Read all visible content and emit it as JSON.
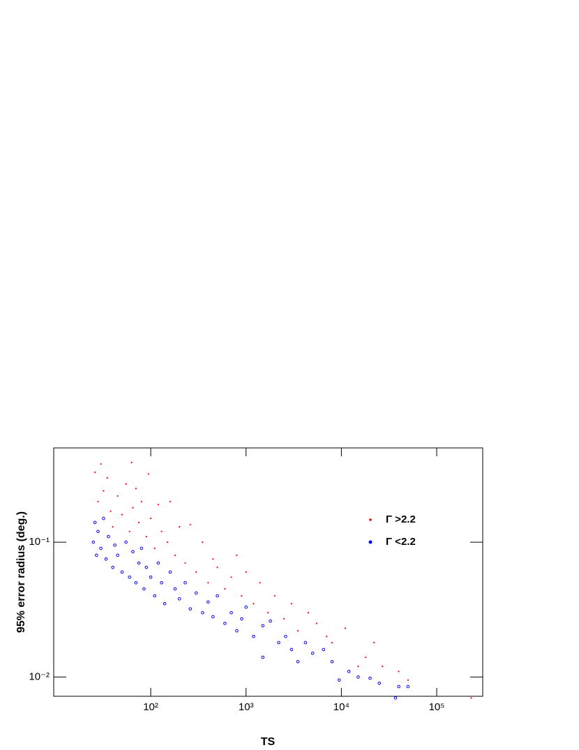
{
  "chart_data": {
    "type": "scatter",
    "x_label": "TS",
    "y_label": "95% error radius (deg.)",
    "xscale": "log",
    "yscale": "log",
    "xlim": [
      9.6,
      304000
    ],
    "ylim": [
      0.0072,
      0.5
    ],
    "xticks": [
      {
        "value": 100,
        "label": "10²"
      },
      {
        "value": 1000,
        "label": "10³"
      },
      {
        "value": 10000,
        "label": "10⁴"
      },
      {
        "value": 100000,
        "label": "10⁵"
      }
    ],
    "yticks": [
      {
        "value": 0.01,
        "label": "10⁻²"
      },
      {
        "value": 0.1,
        "label": "10⁻¹"
      }
    ],
    "legend": "upper right",
    "series": [
      {
        "name": "Γ >2.2",
        "color": "#ff0000",
        "x": [
          26,
          28,
          30,
          32,
          35,
          38,
          40,
          45,
          50,
          55,
          60,
          63,
          65,
          70,
          75,
          80,
          90,
          95,
          100,
          110,
          120,
          130,
          150,
          160,
          180,
          200,
          230,
          260,
          300,
          350,
          400,
          450,
          500,
          600,
          700,
          800,
          900,
          1000,
          1200,
          1400,
          1700,
          2000,
          2500,
          3000,
          3500,
          4500,
          5500,
          7000,
          8000,
          11000,
          15000,
          18000,
          22000,
          27000,
          40000,
          50000,
          230000
        ],
        "values": [
          0.33,
          0.2,
          0.38,
          0.24,
          0.3,
          0.17,
          0.13,
          0.22,
          0.16,
          0.27,
          0.12,
          0.39,
          0.18,
          0.25,
          0.14,
          0.2,
          0.11,
          0.32,
          0.15,
          0.09,
          0.19,
          0.12,
          0.1,
          0.2,
          0.08,
          0.13,
          0.07,
          0.135,
          0.06,
          0.1,
          0.05,
          0.075,
          0.065,
          0.045,
          0.055,
          0.08,
          0.04,
          0.06,
          0.035,
          0.05,
          0.03,
          0.04,
          0.027,
          0.035,
          0.022,
          0.03,
          0.025,
          0.02,
          0.018,
          0.023,
          0.012,
          0.014,
          0.018,
          0.012,
          0.011,
          0.0095,
          0.007
        ]
      },
      {
        "name": "Γ <2.2",
        "color": "#0000ff",
        "x": [
          25,
          26,
          27,
          28,
          30,
          32,
          34,
          36,
          40,
          42,
          45,
          50,
          55,
          60,
          65,
          70,
          75,
          80,
          85,
          90,
          100,
          110,
          120,
          130,
          140,
          160,
          180,
          200,
          230,
          260,
          300,
          350,
          400,
          450,
          500,
          600,
          700,
          800,
          900,
          1000,
          1200,
          1500,
          1500,
          1800,
          2200,
          2600,
          3000,
          3500,
          4200,
          5000,
          6500,
          8000,
          9500,
          12000,
          15000,
          20000,
          25000,
          37000,
          40000,
          50000
        ],
        "values": [
          0.1,
          0.14,
          0.08,
          0.12,
          0.09,
          0.15,
          0.075,
          0.11,
          0.065,
          0.095,
          0.08,
          0.06,
          0.1,
          0.055,
          0.085,
          0.05,
          0.07,
          0.09,
          0.045,
          0.065,
          0.055,
          0.04,
          0.07,
          0.05,
          0.035,
          0.06,
          0.045,
          0.038,
          0.05,
          0.032,
          0.042,
          0.03,
          0.036,
          0.028,
          0.04,
          0.025,
          0.03,
          0.022,
          0.027,
          0.033,
          0.02,
          0.014,
          0.024,
          0.026,
          0.018,
          0.02,
          0.016,
          0.013,
          0.018,
          0.015,
          0.016,
          0.013,
          0.0095,
          0.011,
          0.01,
          0.0098,
          0.009,
          0.007,
          0.0085,
          0.0085
        ]
      }
    ]
  }
}
